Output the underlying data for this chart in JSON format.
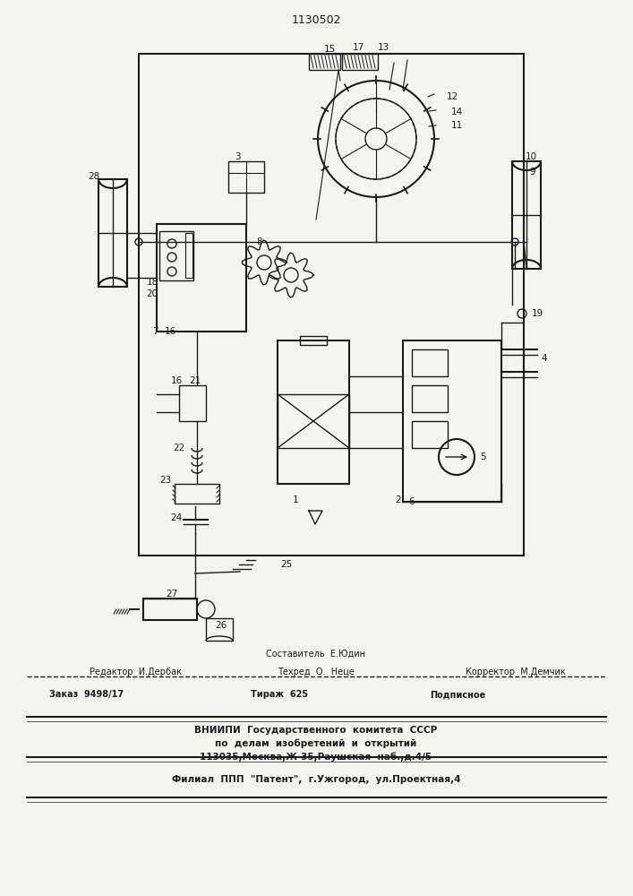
{
  "title": "1130502",
  "bg_color": "#f5f5f0",
  "line_color": "#1a1a1a",
  "footer_lines": [
    "Составитель  Е.Юдин",
    "Редактор  И.Дербак        Техред  О. Неце          Корректор  М.Демчик",
    "Заказ  9498/17           Тираж  625              Подписное",
    "ВНИИПИ  Государственного  комитета  СССР",
    "по  делам  изобретений  и  открытий",
    "113035,Москва,Ж-35,Раушская  наб.,д.4/5",
    "Филиал  ППП  \"Патент\",  г.Ужгород,  ул.Проектная,4"
  ]
}
